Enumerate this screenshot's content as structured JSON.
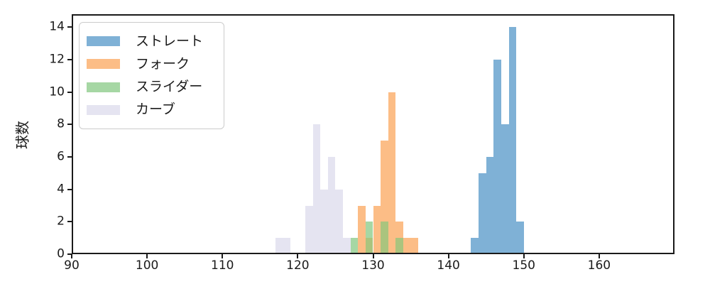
{
  "figure": {
    "ylabel": "球数",
    "background_color": "#ffffff",
    "axis_color": "#1a1a1a"
  },
  "legend": {
    "position": "upper left",
    "items": [
      {
        "label": "ストレート",
        "color": "#7fb1d6"
      },
      {
        "label": "フォーク",
        "color": "#fcbd86"
      },
      {
        "label": "スライダー",
        "color": "#a6d7a4"
      },
      {
        "label": "カーブ",
        "color": "#e5e4f1"
      }
    ]
  },
  "chart_data": {
    "type": "bar",
    "subtype": "histogram",
    "title": "",
    "xlabel": "",
    "ylabel": "球数",
    "grid": false,
    "legend_position": "upper left",
    "bin_width": 1,
    "xlim": [
      90,
      170
    ],
    "ylim": [
      0,
      14.8
    ],
    "xticks": [
      90,
      100,
      110,
      120,
      130,
      140,
      150,
      160
    ],
    "yticks": [
      0,
      2,
      4,
      6,
      8,
      10,
      12,
      14
    ],
    "overlap_color": "#aac47e",
    "series": [
      {
        "name": "ストレート",
        "color": "#7fb1d6",
        "bins": [
          [
            143,
            1
          ],
          [
            144,
            5
          ],
          [
            145,
            6
          ],
          [
            146,
            12
          ],
          [
            147,
            8
          ],
          [
            148,
            14
          ],
          [
            149,
            2
          ]
        ]
      },
      {
        "name": "フォーク",
        "color": "#fcbd86",
        "bins": [
          [
            128,
            3
          ],
          [
            129,
            1
          ],
          [
            130,
            3
          ],
          [
            131,
            7
          ],
          [
            132,
            10
          ],
          [
            133,
            2
          ],
          [
            134,
            1
          ],
          [
            135,
            1
          ]
        ]
      },
      {
        "name": "スライダー",
        "color": "#a6d7a4",
        "bins": [
          [
            127,
            1
          ],
          [
            129,
            2
          ],
          [
            131,
            2
          ],
          [
            133,
            1
          ]
        ]
      },
      {
        "name": "カーブ",
        "color": "#e5e4f1",
        "bins": [
          [
            117,
            1
          ],
          [
            118,
            1
          ],
          [
            121,
            3
          ],
          [
            122,
            8
          ],
          [
            123,
            4
          ],
          [
            124,
            6
          ],
          [
            125,
            4
          ],
          [
            126,
            1
          ]
        ]
      }
    ]
  }
}
